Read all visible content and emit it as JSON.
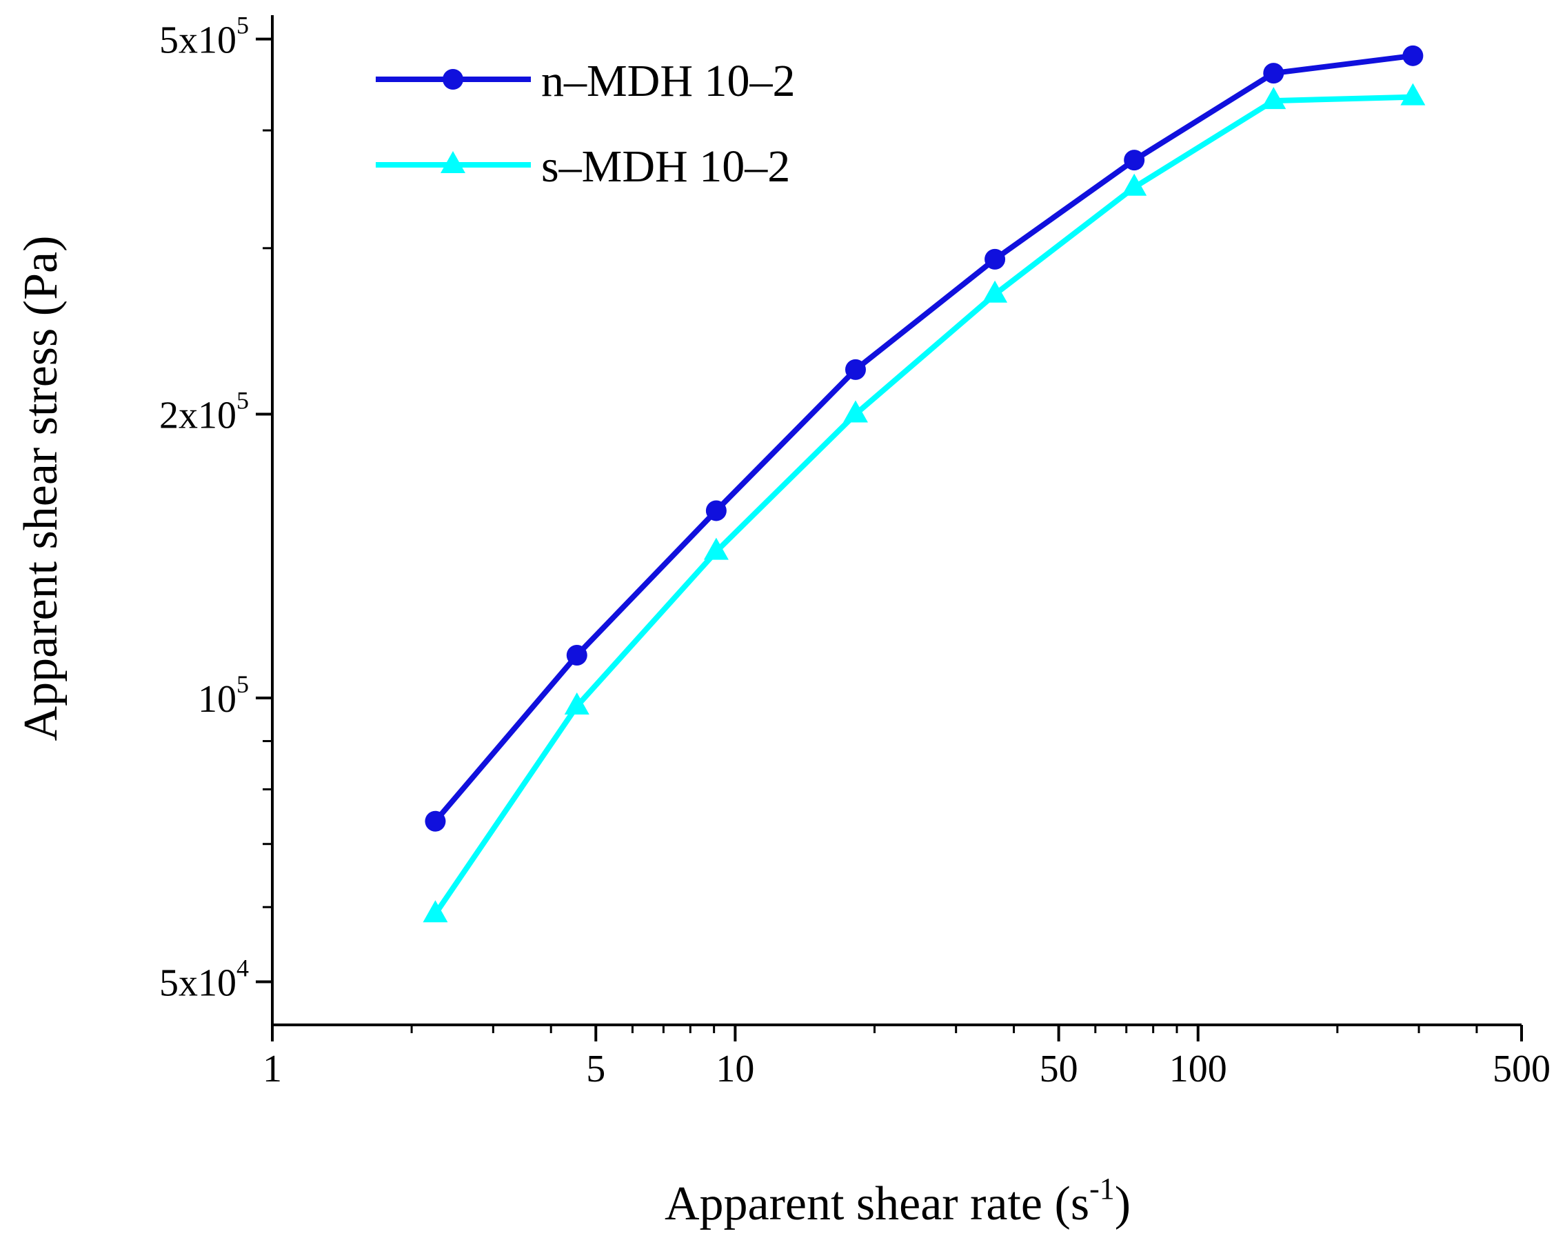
{
  "chart_data": {
    "type": "line",
    "title": "",
    "xlabel": "Apparent shear rate (s",
    "xlabel_sup": "-1",
    "xlabel_end": ")",
    "ylabel": "Apparent shear stress (Pa)",
    "xscale": "log",
    "yscale": "log",
    "xlim": [
      1,
      500
    ],
    "ylim": [
      45000,
      530000
    ],
    "x_ticks": [
      {
        "value": 1,
        "label": "1"
      },
      {
        "value": 5,
        "label": "5"
      },
      {
        "value": 10,
        "label": "10"
      },
      {
        "value": 50,
        "label": "50"
      },
      {
        "value": 100,
        "label": "100"
      },
      {
        "value": 500,
        "label": "500"
      }
    ],
    "y_ticks": [
      {
        "value": 50000,
        "base": "5x10",
        "exp": "4"
      },
      {
        "value": 100000,
        "base": "10",
        "exp": "5"
      },
      {
        "value": 200000,
        "base": "2x10",
        "exp": "5"
      },
      {
        "value": 500000,
        "base": "5x10",
        "exp": "5"
      }
    ],
    "y_minor_ticks": [
      60000,
      70000,
      80000,
      90000,
      300000,
      400000
    ],
    "legend_position": "top-left",
    "series": [
      {
        "name": "n–MDH 10–2",
        "color": "#1010dd",
        "marker": "circle",
        "x": [
          2.25,
          4.55,
          9.1,
          18.2,
          36.4,
          72.8,
          145.6,
          291.2
        ],
        "y": [
          74000,
          111000,
          158000,
          223000,
          292000,
          372000,
          460000,
          480000
        ]
      },
      {
        "name": "s–MDH 10–2",
        "color": "#00ffff",
        "marker": "triangle",
        "x": [
          2.25,
          4.55,
          9.1,
          18.2,
          36.4,
          72.8,
          145.6,
          291.2
        ],
        "y": [
          59000,
          98000,
          143000,
          200000,
          268000,
          348000,
          430000,
          434000
        ]
      }
    ]
  }
}
